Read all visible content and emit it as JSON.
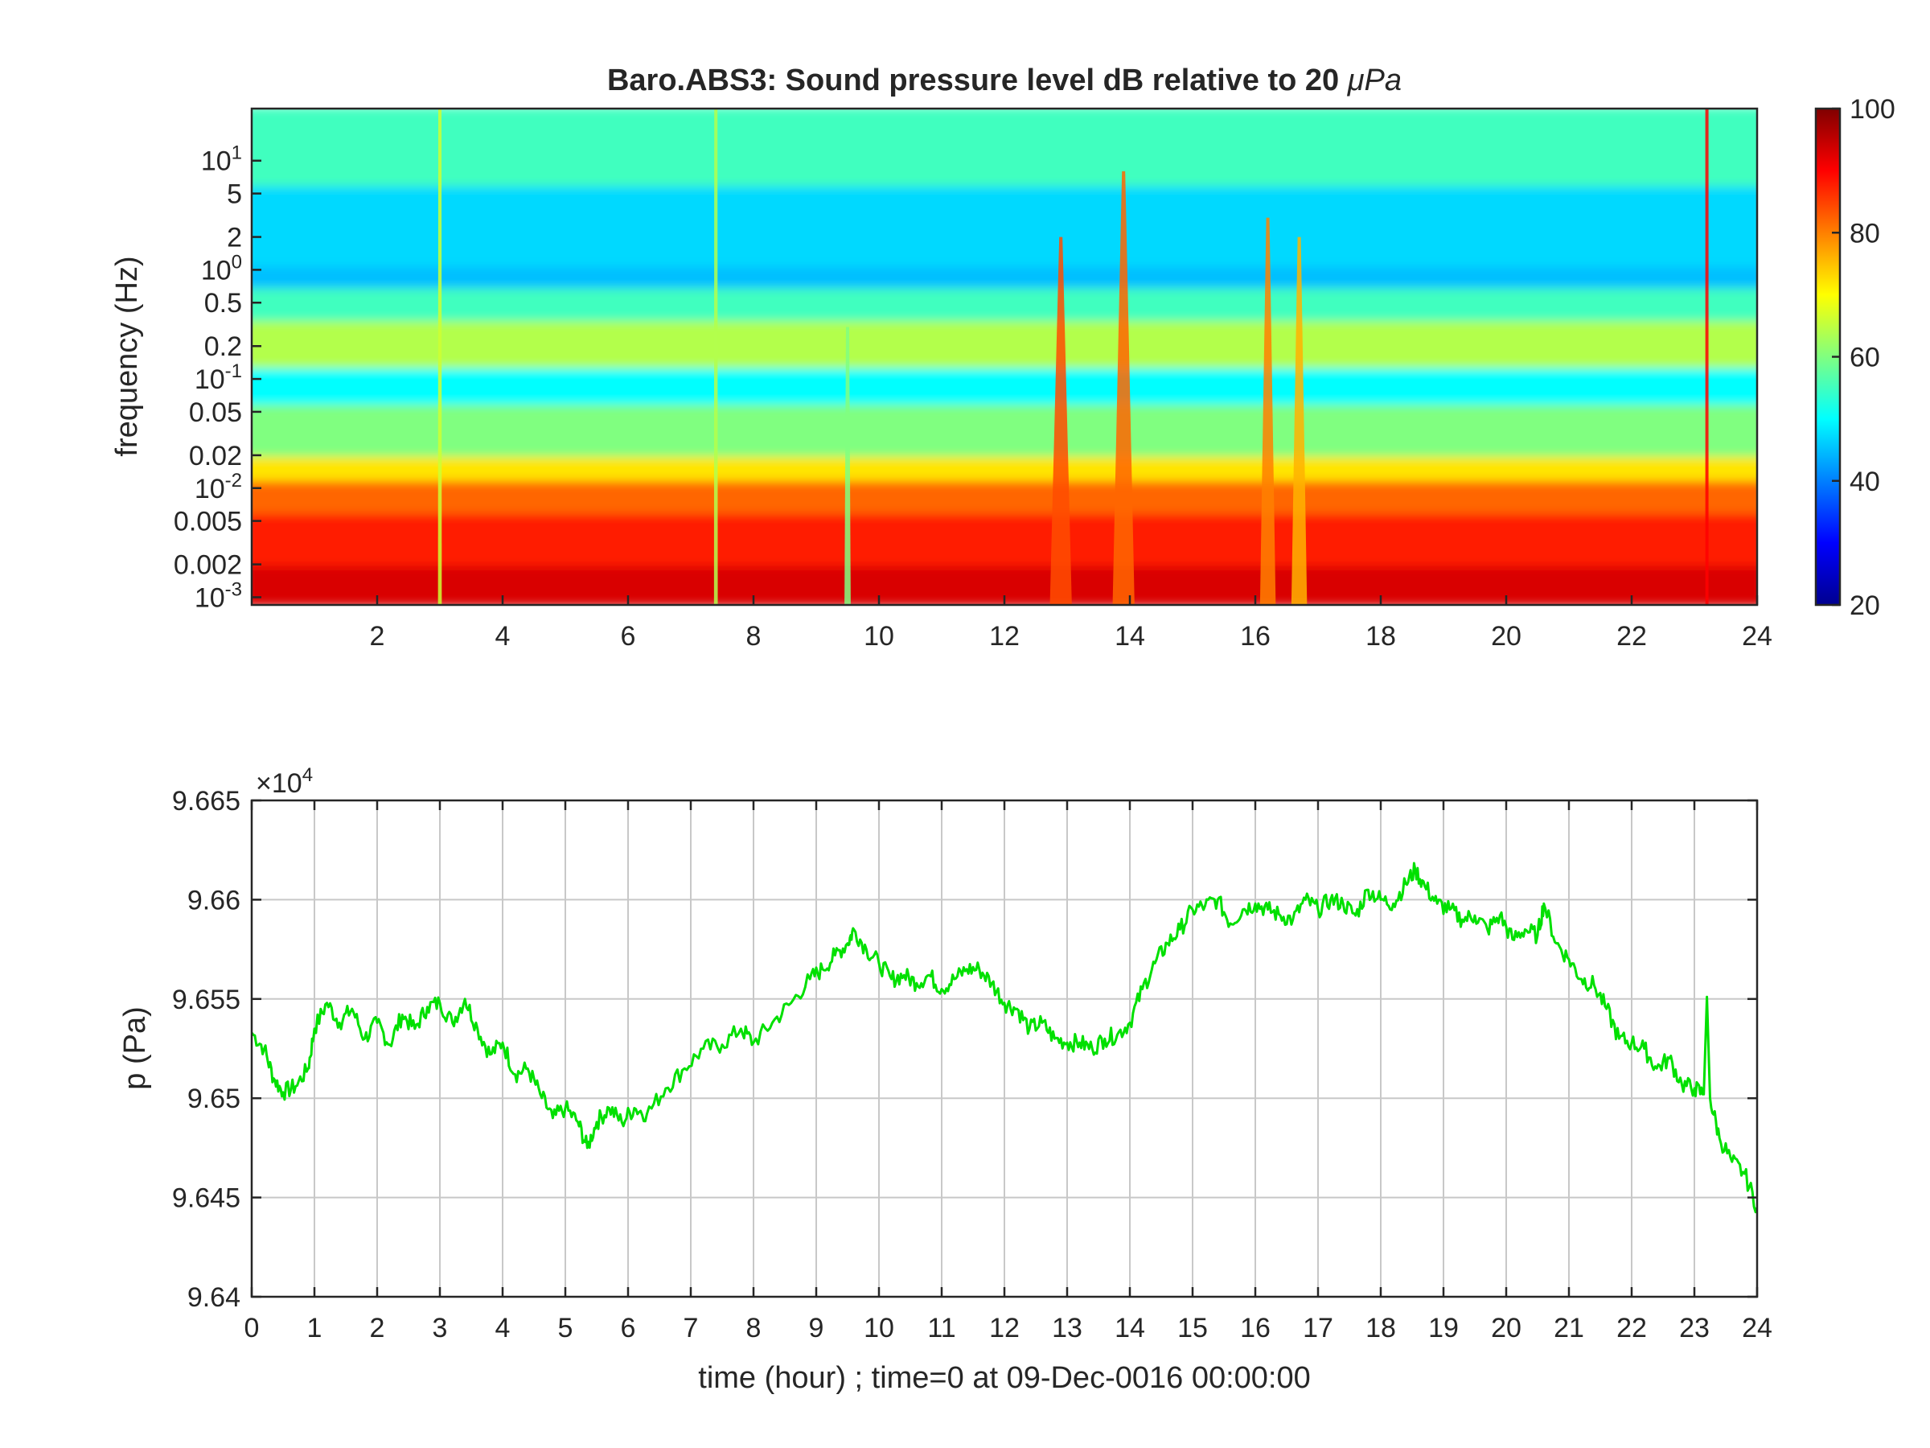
{
  "colors": {
    "trace": "#00e000",
    "axis": "#262626",
    "grid": "#c8c8c8"
  },
  "chart_data": [
    {
      "type": "heatmap",
      "title": "Baro.ABS3: Sound pressure level dB relative to 20 μPa",
      "title_prefix": "Baro.ABS3: Sound pressure level dB relative to 20 ",
      "title_unit": "μPa",
      "xlabel": "",
      "ylabel": "frequency (Hz)",
      "y_scale": "log",
      "x_range": [
        0,
        24
      ],
      "y_range": [
        0.00085,
        30
      ],
      "x_ticks": [
        2,
        4,
        6,
        8,
        10,
        12,
        14,
        16,
        18,
        20,
        22,
        24
      ],
      "x_tick_labels": [
        "2",
        "4",
        "6",
        "8",
        "10",
        "12",
        "14",
        "16",
        "18",
        "20",
        "22",
        "24"
      ],
      "y_ticks": [
        {
          "value": 0.001,
          "base": "10",
          "exp": "-3"
        },
        {
          "value": 0.002,
          "label": "0.002"
        },
        {
          "value": 0.005,
          "label": "0.005"
        },
        {
          "value": 0.01,
          "base": "10",
          "exp": "-2"
        },
        {
          "value": 0.02,
          "label": "0.02"
        },
        {
          "value": 0.05,
          "label": "0.05"
        },
        {
          "value": 0.1,
          "base": "10",
          "exp": "-1"
        },
        {
          "value": 0.2,
          "label": "0.2"
        },
        {
          "value": 0.5,
          "label": "0.5"
        },
        {
          "value": 1,
          "base": "10",
          "exp": "0"
        },
        {
          "value": 2,
          "label": "2"
        },
        {
          "value": 5,
          "label": "5"
        },
        {
          "value": 10,
          "base": "10",
          "exp": "1"
        }
      ],
      "colorbar": {
        "colormap": "jet",
        "range": [
          20,
          100
        ],
        "ticks": [
          20,
          40,
          60,
          80,
          100
        ],
        "tick_labels": [
          "20",
          "40",
          "60",
          "80",
          "100"
        ]
      },
      "spectral_bands": [
        {
          "f_low": 0.00085,
          "f_high": 0.002,
          "db": 93
        },
        {
          "f_low": 0.002,
          "f_high": 0.006,
          "db": 88
        },
        {
          "f_low": 0.006,
          "f_high": 0.012,
          "db": 82
        },
        {
          "f_low": 0.012,
          "f_high": 0.02,
          "db": 72
        },
        {
          "f_low": 0.02,
          "f_high": 0.06,
          "db": 60
        },
        {
          "f_low": 0.06,
          "f_high": 0.13,
          "db": 50
        },
        {
          "f_low": 0.13,
          "f_high": 0.35,
          "db": 64
        },
        {
          "f_low": 0.35,
          "f_high": 0.7,
          "db": 55
        },
        {
          "f_low": 0.7,
          "f_high": 1.1,
          "db": 45
        },
        {
          "f_low": 1.1,
          "f_high": 6,
          "db": 47
        },
        {
          "f_low": 6,
          "f_high": 30,
          "db": 55
        }
      ],
      "events": [
        {
          "t": 3.0,
          "db": 66,
          "f_top": 30,
          "width": 0.06
        },
        {
          "t": 7.4,
          "db": 64,
          "f_top": 30,
          "width": 0.06
        },
        {
          "t": 9.5,
          "db": 60,
          "f_top": 0.3,
          "width": 0.1
        },
        {
          "t": 12.9,
          "db": 84,
          "f_top": 2,
          "width": 0.35
        },
        {
          "t": 13.9,
          "db": 82,
          "f_top": 8,
          "width": 0.35
        },
        {
          "t": 16.2,
          "db": 80,
          "f_top": 3,
          "width": 0.25
        },
        {
          "t": 16.7,
          "db": 76,
          "f_top": 2,
          "width": 0.25
        },
        {
          "t": 23.2,
          "db": 90,
          "f_top": 30,
          "width": 0.05
        }
      ]
    },
    {
      "type": "line",
      "xlabel": "time (hour) ; time=0 at 09-Dec-0016 00:00:00",
      "ylabel": "p (Pa)",
      "exponent_label": {
        "base": "×10",
        "exp": "4"
      },
      "x_range": [
        0,
        24
      ],
      "y_range": [
        9.64,
        9.665
      ],
      "x_ticks": [
        0,
        1,
        2,
        3,
        4,
        5,
        6,
        7,
        8,
        9,
        10,
        11,
        12,
        13,
        14,
        15,
        16,
        17,
        18,
        19,
        20,
        21,
        22,
        23,
        24
      ],
      "x_tick_labels": [
        "0",
        "1",
        "2",
        "3",
        "4",
        "5",
        "6",
        "7",
        "8",
        "9",
        "10",
        "11",
        "12",
        "13",
        "14",
        "15",
        "16",
        "17",
        "18",
        "19",
        "20",
        "21",
        "22",
        "23",
        "24"
      ],
      "y_ticks": [
        9.64,
        9.645,
        9.65,
        9.655,
        9.66,
        9.665
      ],
      "y_tick_labels": [
        "9.64",
        "9.645",
        "9.65",
        "9.655",
        "9.66",
        "9.665"
      ],
      "grid": true,
      "series": [
        {
          "color": "#00e000",
          "x": [
            0,
            0.2,
            0.35,
            0.5,
            0.7,
            0.9,
            1.0,
            1.2,
            1.4,
            1.6,
            1.8,
            2.0,
            2.2,
            2.4,
            2.6,
            2.8,
            3.0,
            3.2,
            3.4,
            3.6,
            3.8,
            4.0,
            4.2,
            4.4,
            4.6,
            4.8,
            5.0,
            5.2,
            5.35,
            5.5,
            5.7,
            5.9,
            6.1,
            6.3,
            6.6,
            6.9,
            7.2,
            7.5,
            7.8,
            8.0,
            8.3,
            8.6,
            8.9,
            9.1,
            9.3,
            9.5,
            9.6,
            9.8,
            10.0,
            10.2,
            10.4,
            10.6,
            10.8,
            11.0,
            11.2,
            11.4,
            11.6,
            11.8,
            12.0,
            12.2,
            12.4,
            12.6,
            12.8,
            13.0,
            13.2,
            13.4,
            13.6,
            13.8,
            14.0,
            14.2,
            14.4,
            14.6,
            14.8,
            15.0,
            15.2,
            15.4,
            15.6,
            15.8,
            16.0,
            16.2,
            16.4,
            16.6,
            16.8,
            17.0,
            17.2,
            17.4,
            17.6,
            17.8,
            18.0,
            18.2,
            18.4,
            18.55,
            18.7,
            18.9,
            19.1,
            19.3,
            19.5,
            19.7,
            19.9,
            20.1,
            20.3,
            20.5,
            20.6,
            20.8,
            21.0,
            21.2,
            21.4,
            21.6,
            21.8,
            22.0,
            22.2,
            22.4,
            22.6,
            22.8,
            23.0,
            23.15,
            23.2,
            23.25,
            23.4,
            23.6,
            23.8,
            24.0
          ],
          "y": [
            9.6533,
            9.6525,
            9.651,
            9.6503,
            9.6506,
            9.6515,
            9.6535,
            9.6548,
            9.6538,
            9.6545,
            9.653,
            9.6538,
            9.6527,
            9.6542,
            9.6535,
            9.6546,
            9.6548,
            9.6538,
            9.655,
            9.6535,
            9.6522,
            9.6528,
            9.6512,
            9.6515,
            9.6502,
            9.649,
            9.6495,
            9.6488,
            9.6475,
            9.6488,
            9.6495,
            9.6488,
            9.6495,
            9.6492,
            9.6505,
            9.6515,
            9.6525,
            9.6527,
            9.6535,
            9.6528,
            9.6538,
            9.6548,
            9.656,
            9.6565,
            9.6572,
            9.6578,
            9.6585,
            9.6575,
            9.6568,
            9.656,
            9.6562,
            9.6558,
            9.6562,
            9.6555,
            9.656,
            9.6565,
            9.6565,
            9.6558,
            9.6548,
            9.6545,
            9.6535,
            9.6538,
            9.653,
            9.6528,
            9.6528,
            9.6525,
            9.653,
            9.6532,
            9.6538,
            9.6555,
            9.6568,
            9.6578,
            9.6585,
            9.6595,
            9.6597,
            9.66,
            9.6588,
            9.6595,
            9.6598,
            9.6595,
            9.6592,
            9.659,
            9.66,
            9.6595,
            9.66,
            9.6598,
            9.6592,
            9.6605,
            9.66,
            9.6598,
            9.6608,
            9.6615,
            9.6607,
            9.6598,
            9.6595,
            9.659,
            9.6592,
            9.6585,
            9.6592,
            9.658,
            9.6585,
            9.6582,
            9.6598,
            9.6578,
            9.657,
            9.656,
            9.6557,
            9.6545,
            9.653,
            9.6528,
            9.6525,
            9.6515,
            9.652,
            9.6507,
            9.6505,
            9.6502,
            9.6551,
            9.65,
            9.648,
            9.6468,
            9.6462,
            9.6445
          ]
        }
      ]
    }
  ]
}
